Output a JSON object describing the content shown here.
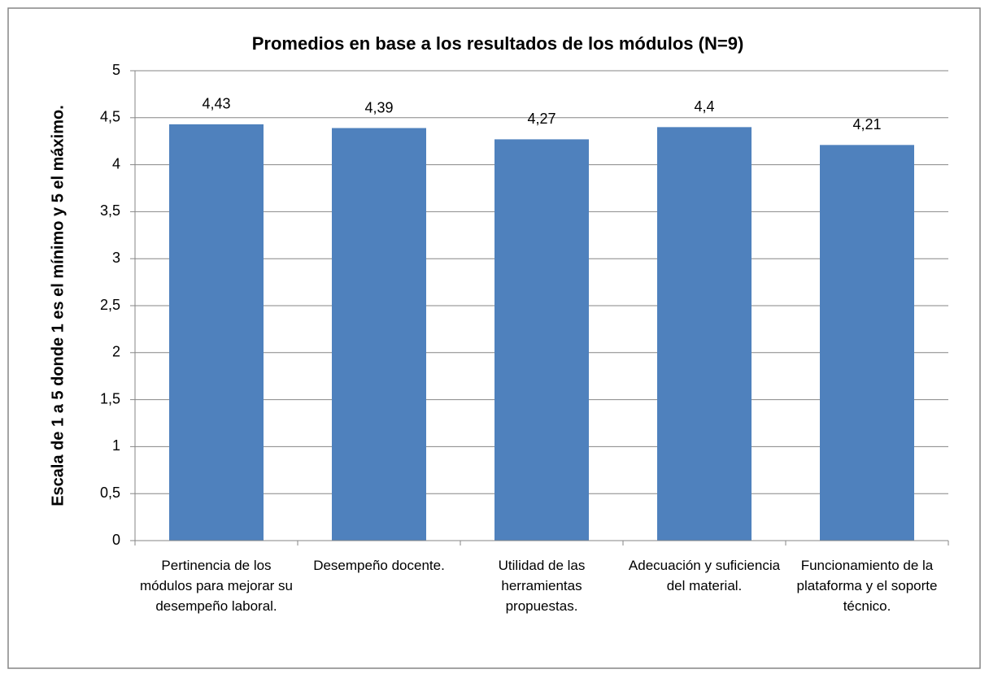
{
  "chart_data": {
    "type": "bar",
    "title": "Promedios en base a los resultados de los módulos (N=9)",
    "y_label": "Escala de 1 a 5 donde 1 es el mínimo y 5 el máximo.",
    "categories": [
      "Pertinencia de los módulos para mejorar su desempeño laboral.",
      "Desempeño docente.",
      "Utilidad de las herramientas propuestas.",
      "Adecuación y suficiencia del material.",
      "Funcionamiento de la plataforma y el soporte técnico."
    ],
    "values": [
      4.43,
      4.39,
      4.27,
      4.4,
      4.21
    ],
    "value_labels": [
      "4,43",
      "4,39",
      "4,27",
      "4,4",
      "4,21"
    ],
    "color": "#4f81bd",
    "ylim": [
      0,
      5
    ],
    "yticks": [
      0,
      {
        "value": 0.5,
        "label": "0,5"
      },
      1,
      {
        "value": 1.5,
        "label": "1,5"
      },
      2,
      {
        "value": 2.5,
        "label": "2,5"
      },
      3,
      {
        "value": 3.5,
        "label": "3,5"
      },
      4,
      {
        "value": 4.5,
        "label": "4,5"
      },
      5
    ],
    "grid": true
  }
}
